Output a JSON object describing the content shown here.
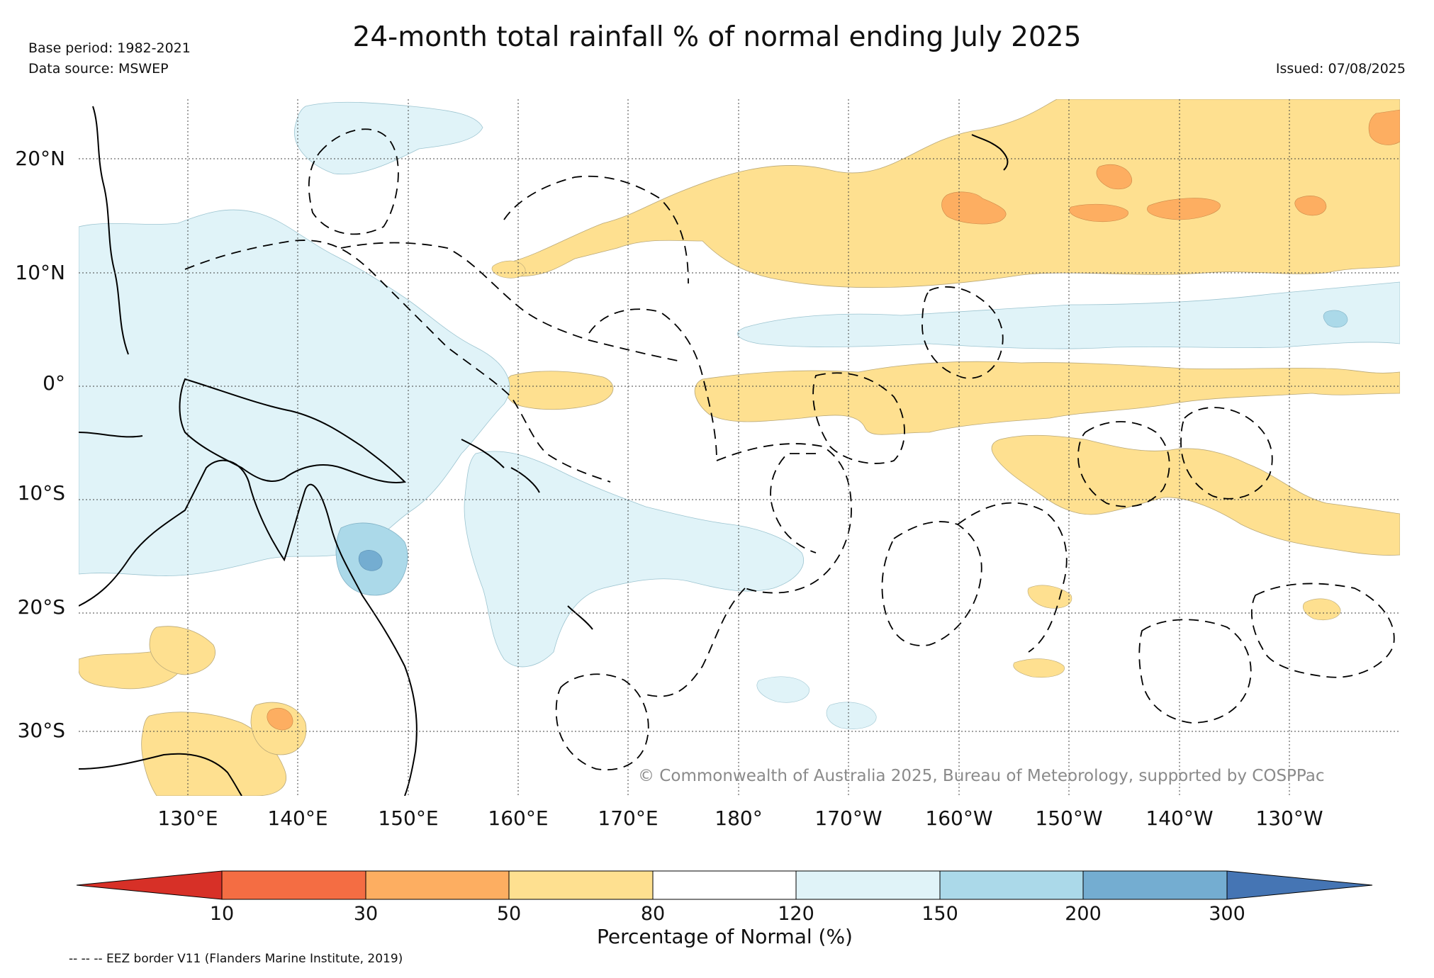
{
  "header": {
    "title": "24-month total rainfall % of normal ending July 2025",
    "base_period": "Base period: 1982-2021",
    "data_source": "Data source: MSWEP",
    "issued": "Issued: 07/08/2025"
  },
  "map": {
    "lon_labels": [
      "130°E",
      "140°E",
      "150°E",
      "160°E",
      "170°E",
      "180°",
      "170°W",
      "160°W",
      "150°W",
      "140°W",
      "130°W"
    ],
    "lat_labels": [
      "20°N",
      "10°N",
      "0°",
      "10°S",
      "20°S",
      "30°S"
    ],
    "copyright": "© Commonwealth of Australia 2025, Bureau of Meteorology, supported by COSPPac"
  },
  "legend": {
    "colors": {
      "lt10": "#d73027",
      "10-30": "#f46d43",
      "30-50": "#fdae61",
      "50-80": "#fee090",
      "80-120": "#ffffff",
      "120-150": "#e0f3f8",
      "150-200": "#abd9e9",
      "200-300": "#74add1",
      "gt300": "#4575b4"
    },
    "ticks": [
      "10",
      "30",
      "50",
      "80",
      "120",
      "150",
      "200",
      "300"
    ],
    "label": "Percentage of Normal (%)"
  },
  "footnote": "-- -- -- EEZ border V11 (Flanders Marine Institute, 2019)"
}
